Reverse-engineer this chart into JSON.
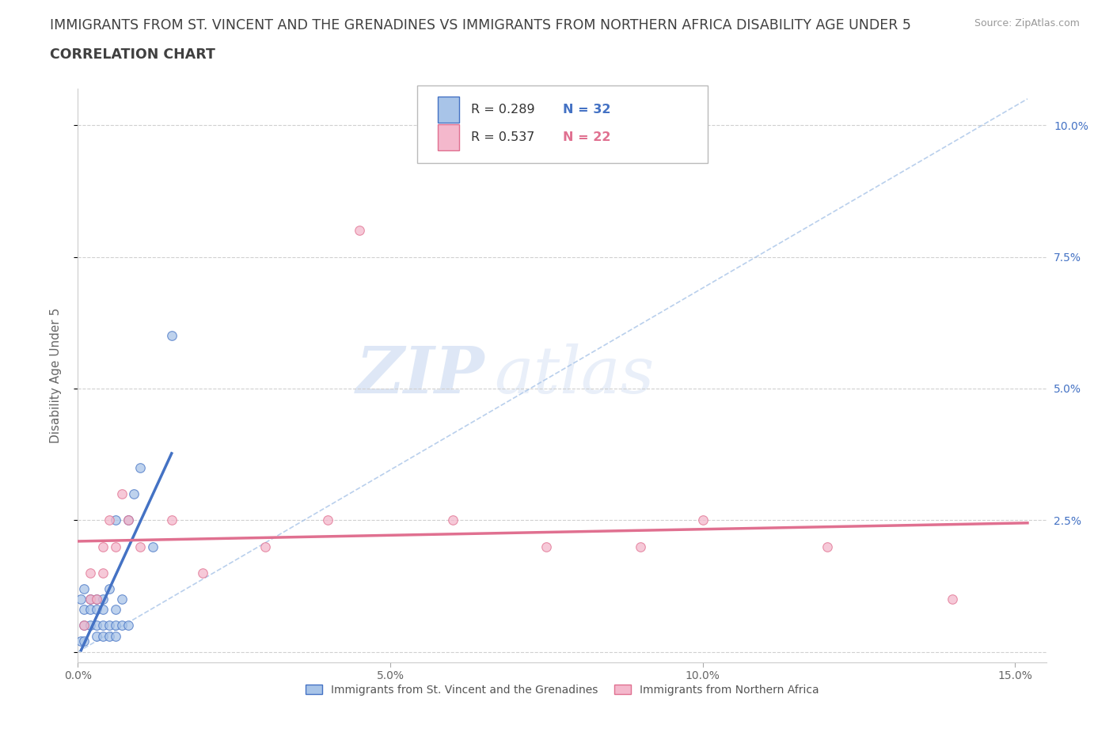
{
  "title": "IMMIGRANTS FROM ST. VINCENT AND THE GRENADINES VS IMMIGRANTS FROM NORTHERN AFRICA DISABILITY AGE UNDER 5",
  "subtitle": "CORRELATION CHART",
  "source": "Source: ZipAtlas.com",
  "ylabel": "Disability Age Under 5",
  "watermark_zip": "ZIP",
  "watermark_atlas": "atlas",
  "blue_R": 0.289,
  "blue_N": 32,
  "pink_R": 0.537,
  "pink_N": 22,
  "blue_label": "Immigrants from St. Vincent and the Grenadines",
  "pink_label": "Immigrants from Northern Africa",
  "xlim": [
    0.0,
    0.155
  ],
  "ylim": [
    -0.002,
    0.107
  ],
  "blue_x": [
    0.0005,
    0.001,
    0.001,
    0.001,
    0.002,
    0.002,
    0.002,
    0.003,
    0.003,
    0.003,
    0.003,
    0.004,
    0.004,
    0.004,
    0.004,
    0.005,
    0.005,
    0.005,
    0.006,
    0.006,
    0.006,
    0.006,
    0.007,
    0.007,
    0.008,
    0.008,
    0.009,
    0.01,
    0.012,
    0.015,
    0.0005,
    0.001
  ],
  "blue_y": [
    0.01,
    0.005,
    0.008,
    0.012,
    0.005,
    0.008,
    0.01,
    0.003,
    0.005,
    0.008,
    0.01,
    0.003,
    0.005,
    0.008,
    0.01,
    0.003,
    0.005,
    0.012,
    0.003,
    0.005,
    0.008,
    0.025,
    0.005,
    0.01,
    0.005,
    0.025,
    0.03,
    0.035,
    0.02,
    0.06,
    0.002,
    0.002
  ],
  "pink_x": [
    0.001,
    0.002,
    0.002,
    0.003,
    0.004,
    0.004,
    0.005,
    0.006,
    0.007,
    0.008,
    0.01,
    0.015,
    0.02,
    0.03,
    0.04,
    0.045,
    0.06,
    0.075,
    0.09,
    0.1,
    0.12,
    0.14
  ],
  "pink_y": [
    0.005,
    0.01,
    0.015,
    0.01,
    0.015,
    0.02,
    0.025,
    0.02,
    0.03,
    0.025,
    0.02,
    0.025,
    0.015,
    0.02,
    0.025,
    0.08,
    0.025,
    0.02,
    0.02,
    0.025,
    0.02,
    0.01
  ],
  "blue_line_color": "#4472c4",
  "pink_line_color": "#e07090",
  "blue_dot_color": "#a8c4e8",
  "pink_dot_color": "#f4b8cc",
  "ref_line_color": "#a8c4e8",
  "grid_color": "#d0d0d0",
  "background_color": "#ffffff",
  "title_color": "#404040",
  "right_tick_color": "#4472c4",
  "dot_size": 70,
  "dot_alpha": 0.75,
  "title_fontsize": 12.5,
  "subtitle_fontsize": 12.5,
  "axis_label_fontsize": 11,
  "tick_fontsize": 10,
  "legend_fontsize": 12
}
